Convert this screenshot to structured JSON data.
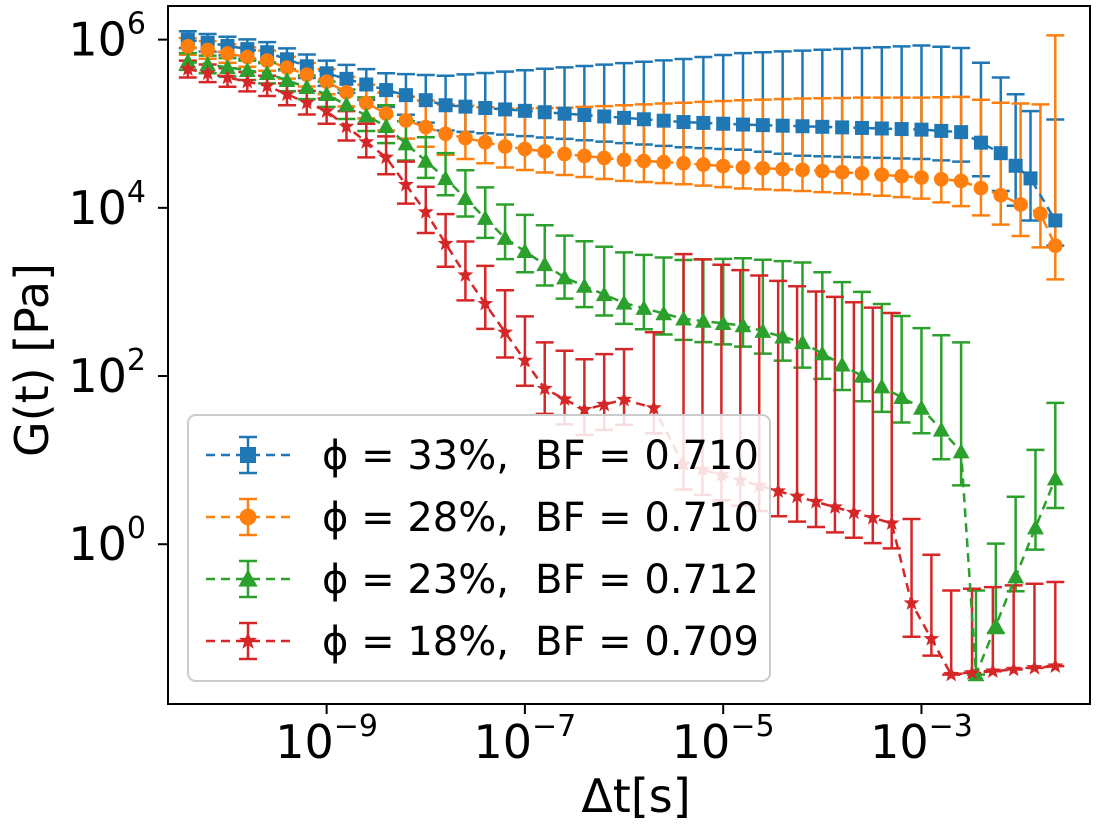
{
  "chart_data": {
    "type": "line",
    "xscale": "log",
    "yscale": "log",
    "xlim_exp": [
      -10.6,
      -1.3
    ],
    "ylim_exp": [
      -1.9,
      6.4
    ],
    "xlabel": "Δt[s]",
    "ylabel": "G(t) [Pa]",
    "xticks": [
      {
        "base": "10",
        "exp": "−9",
        "value_exp": -9
      },
      {
        "base": "10",
        "exp": "−7",
        "value_exp": -7
      },
      {
        "base": "10",
        "exp": "−5",
        "value_exp": -5
      },
      {
        "base": "10",
        "exp": "−3",
        "value_exp": -3
      }
    ],
    "yticks": [
      {
        "base": "10",
        "exp": "6",
        "value_exp": 6
      },
      {
        "base": "10",
        "exp": "4",
        "value_exp": 4
      },
      {
        "base": "10",
        "exp": "2",
        "value_exp": 2
      },
      {
        "base": "10",
        "exp": "0",
        "value_exp": 0
      }
    ],
    "series": [
      {
        "name": "φ = 33%, BF = 0.710",
        "legend_phi": "ϕ = 33%,",
        "legend_bf": "BF = 0.710",
        "color": "#1f77b4",
        "marker": "square",
        "points": [
          [
            -10.4,
            6.0,
            0.1,
            0.1
          ],
          [
            -9.6,
            5.85,
            0.12,
            0.12
          ],
          [
            -9.0,
            5.6,
            0.15,
            0.15
          ],
          [
            -8.4,
            5.4,
            0.2,
            0.2
          ],
          [
            -7.8,
            5.22,
            0.3,
            0.35
          ],
          [
            -7.2,
            5.17,
            0.3,
            0.45
          ],
          [
            -6.6,
            5.12,
            0.3,
            0.55
          ],
          [
            -6.0,
            5.07,
            0.3,
            0.65
          ],
          [
            -5.4,
            5.02,
            0.3,
            0.75
          ],
          [
            -4.8,
            4.99,
            0.3,
            0.85
          ],
          [
            -4.2,
            4.97,
            0.35,
            0.9
          ],
          [
            -3.6,
            4.95,
            0.35,
            0.95
          ],
          [
            -3.0,
            4.93,
            0.35,
            1.0
          ],
          [
            -2.6,
            4.9,
            0.35,
            1.0
          ],
          [
            -2.2,
            4.65,
            0.45,
            0.9
          ],
          [
            -1.9,
            4.35,
            0.5,
            0.8
          ],
          [
            -1.65,
            3.85,
            0.3,
            1.2
          ]
        ]
      },
      {
        "name": "φ = 28%, BF = 0.710",
        "legend_phi": "ϕ = 28%,",
        "legend_bf": "BF = 0.710",
        "color": "#ff7f0e",
        "marker": "circle",
        "points": [
          [
            -10.4,
            5.92,
            0.1,
            0.1
          ],
          [
            -9.6,
            5.75,
            0.12,
            0.12
          ],
          [
            -9.0,
            5.5,
            0.15,
            0.15
          ],
          [
            -8.4,
            5.12,
            0.2,
            0.25
          ],
          [
            -7.8,
            4.88,
            0.25,
            0.35
          ],
          [
            -7.2,
            4.73,
            0.25,
            0.45
          ],
          [
            -6.6,
            4.64,
            0.25,
            0.55
          ],
          [
            -6.0,
            4.57,
            0.25,
            0.65
          ],
          [
            -5.4,
            4.53,
            0.25,
            0.72
          ],
          [
            -4.8,
            4.48,
            0.25,
            0.8
          ],
          [
            -4.2,
            4.45,
            0.25,
            0.85
          ],
          [
            -3.6,
            4.41,
            0.25,
            0.9
          ],
          [
            -3.0,
            4.36,
            0.25,
            0.95
          ],
          [
            -2.6,
            4.32,
            0.3,
            1.0
          ],
          [
            -2.2,
            4.15,
            0.35,
            1.1
          ],
          [
            -1.8,
            3.93,
            0.4,
            1.3
          ],
          [
            -1.65,
            3.55,
            0.4,
            2.5
          ]
        ]
      },
      {
        "name": "φ = 23%, BF = 0.712",
        "legend_phi": "ϕ = 23%,",
        "legend_bf": "BF = 0.712",
        "color": "#2ca02c",
        "marker": "triangle",
        "points": [
          [
            -10.4,
            5.74,
            0.1,
            0.1
          ],
          [
            -9.6,
            5.6,
            0.12,
            0.12
          ],
          [
            -9.0,
            5.35,
            0.15,
            0.15
          ],
          [
            -8.4,
            4.97,
            0.2,
            0.25
          ],
          [
            -7.8,
            4.35,
            0.2,
            0.3
          ],
          [
            -7.2,
            3.64,
            0.25,
            0.4
          ],
          [
            -6.6,
            3.17,
            0.25,
            0.5
          ],
          [
            -6.0,
            2.87,
            0.25,
            0.6
          ],
          [
            -5.4,
            2.68,
            0.25,
            0.7
          ],
          [
            -4.8,
            2.6,
            0.25,
            0.8
          ],
          [
            -4.2,
            2.4,
            0.3,
            0.95
          ],
          [
            -3.6,
            2.0,
            0.3,
            1.0
          ],
          [
            -3.0,
            1.62,
            0.3,
            0.95
          ],
          [
            -2.6,
            1.1,
            0.4,
            1.3
          ],
          [
            -2.45,
            -1.55,
            0.0,
            1.0
          ],
          [
            -1.65,
            0.78,
            0.35,
            0.9
          ]
        ]
      },
      {
        "name": "φ = 18%, BF = 0.709",
        "legend_phi": "ϕ = 18%,",
        "legend_bf": "BF = 0.709",
        "color": "#d62728",
        "marker": "star",
        "points": [
          [
            -10.4,
            5.65,
            0.1,
            0.1
          ],
          [
            -9.6,
            5.45,
            0.12,
            0.12
          ],
          [
            -9.0,
            5.15,
            0.15,
            0.15
          ],
          [
            -8.4,
            4.6,
            0.2,
            0.25
          ],
          [
            -8.0,
            3.95,
            0.25,
            0.3
          ],
          [
            -7.6,
            3.2,
            0.3,
            0.4
          ],
          [
            -7.2,
            2.52,
            0.3,
            0.5
          ],
          [
            -6.8,
            1.85,
            0.3,
            0.55
          ],
          [
            -6.4,
            1.6,
            0.3,
            0.6
          ],
          [
            -6.0,
            1.72,
            0.3,
            0.6
          ],
          [
            -5.7,
            1.62,
            0.3,
            0.9
          ],
          [
            -5.4,
            0.95,
            0.3,
            2.5
          ],
          [
            -3.3,
            0.25,
            0.3,
            2.5
          ],
          [
            -3.1,
            -0.7,
            0.4,
            1.0
          ],
          [
            -2.7,
            -1.55,
            0.0,
            1.0
          ],
          [
            -1.65,
            -1.45,
            0.0,
            1.0
          ]
        ]
      }
    ]
  }
}
